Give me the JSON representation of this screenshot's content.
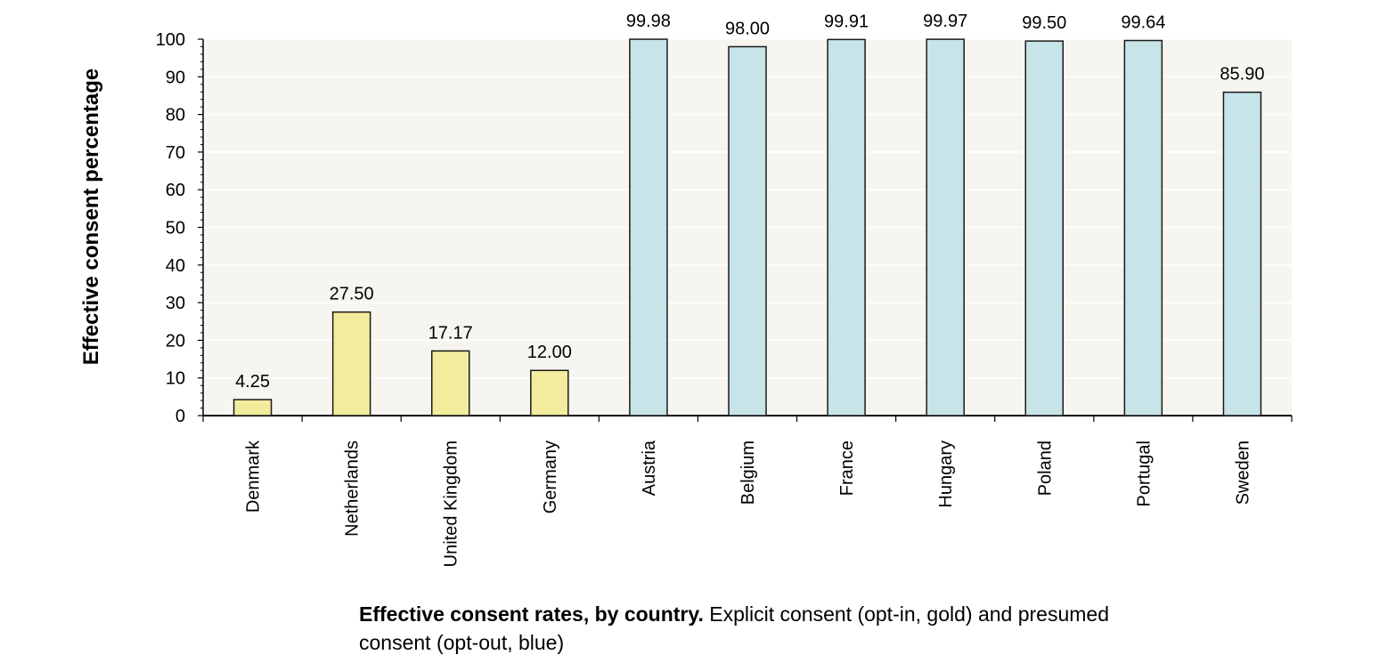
{
  "chart_data": {
    "type": "bar",
    "ylabel": "Effective consent percentage",
    "ylim": [
      0,
      100
    ],
    "yticks": [
      0,
      10,
      20,
      30,
      40,
      50,
      60,
      70,
      80,
      90,
      100
    ],
    "categories": [
      "Denmark",
      "Netherlands",
      "United Kingdom",
      "Germany",
      "Austria",
      "Belgium",
      "France",
      "Hungary",
      "Poland",
      "Portugal",
      "Sweden"
    ],
    "values": [
      4.25,
      27.5,
      17.17,
      12.0,
      99.98,
      98.0,
      99.91,
      99.97,
      99.5,
      99.64,
      85.9
    ],
    "value_labels": [
      "4.25",
      "27.50",
      "17.17",
      "12.00",
      "99.98",
      "98.00",
      "99.91",
      "99.97",
      "99.50",
      "99.64",
      "85.90"
    ],
    "groups": [
      "opt-in",
      "opt-in",
      "opt-in",
      "opt-in",
      "opt-out",
      "opt-out",
      "opt-out",
      "opt-out",
      "opt-out",
      "opt-out",
      "opt-out"
    ],
    "colors": {
      "opt-in": "#f2ec9c",
      "opt-out": "#c7e4e8",
      "plot_bg": "#f7f5ef",
      "grid": "#ffffff",
      "bar_stroke": "#1a1a1a"
    },
    "grid": true
  },
  "caption": {
    "bold": "Effective consent rates, by country.",
    "rest": " Explicit consent (opt-in, gold) and presumed consent (opt-out, blue)"
  }
}
